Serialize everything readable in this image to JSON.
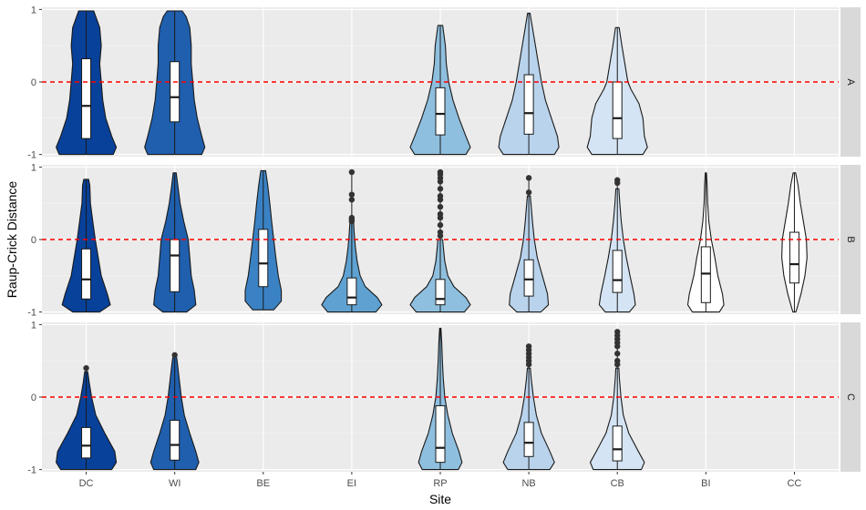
{
  "chart_data": {
    "type": "violin",
    "xlabel": "Site",
    "ylabel": "Raup-Crick Distance",
    "categories": [
      "DC",
      "WI",
      "BE",
      "EI",
      "RP",
      "NB",
      "CB",
      "BI",
      "CC"
    ],
    "y_ticks": [
      -1,
      0,
      1
    ],
    "ylim": [
      -1.03,
      1.03
    ],
    "reference_line": {
      "y": 0,
      "color": "#ff0000",
      "style": "dashed"
    },
    "colors": {
      "DC": "#08419a",
      "WI": "#1f5fae",
      "BE": "#3a82c4",
      "EI": "#5fa2d2",
      "RP": "#8fbfde",
      "NB": "#b9d3ec",
      "CB": "#d4e4f4",
      "BI": "#ffffff",
      "CC": "#ffffff"
    },
    "panels": [
      {
        "facet": "A",
        "violins": [
          {
            "site": "DC",
            "min": -1.0,
            "max": 0.98,
            "q1": -0.78,
            "median": -0.33,
            "q3": 0.32,
            "outliers": [],
            "profile": [
              [
                -1.0,
                0.9
              ],
              [
                -0.9,
                1.0
              ],
              [
                -0.75,
                0.85
              ],
              [
                -0.5,
                0.65
              ],
              [
                -0.25,
                0.55
              ],
              [
                0.0,
                0.5
              ],
              [
                0.25,
                0.45
              ],
              [
                0.5,
                0.5
              ],
              [
                0.75,
                0.45
              ],
              [
                0.9,
                0.32
              ],
              [
                0.98,
                0.25
              ]
            ]
          },
          {
            "site": "WI",
            "min": -1.0,
            "max": 0.98,
            "q1": -0.55,
            "median": -0.21,
            "q3": 0.28,
            "outliers": [],
            "profile": [
              [
                -1.0,
                0.9
              ],
              [
                -0.9,
                1.0
              ],
              [
                -0.75,
                0.9
              ],
              [
                -0.5,
                0.75
              ],
              [
                -0.25,
                0.65
              ],
              [
                0.0,
                0.6
              ],
              [
                0.25,
                0.55
              ],
              [
                0.5,
                0.55
              ],
              [
                0.75,
                0.5
              ],
              [
                0.9,
                0.38
              ],
              [
                0.98,
                0.25
              ]
            ]
          },
          {
            "site": "RP",
            "min": -1.0,
            "max": 0.78,
            "q1": -0.73,
            "median": -0.44,
            "q3": -0.08,
            "outliers": [],
            "profile": [
              [
                -1.0,
                0.85
              ],
              [
                -0.9,
                1.0
              ],
              [
                -0.75,
                0.85
              ],
              [
                -0.5,
                0.62
              ],
              [
                -0.25,
                0.42
              ],
              [
                0.0,
                0.28
              ],
              [
                0.25,
                0.2
              ],
              [
                0.5,
                0.17
              ],
              [
                0.78,
                0.08
              ]
            ]
          },
          {
            "site": "NB",
            "min": -1.0,
            "max": 0.95,
            "q1": -0.72,
            "median": -0.43,
            "q3": 0.1,
            "outliers": [],
            "profile": [
              [
                -1.0,
                0.85
              ],
              [
                -0.9,
                1.0
              ],
              [
                -0.75,
                0.95
              ],
              [
                -0.5,
                0.75
              ],
              [
                -0.25,
                0.55
              ],
              [
                0.0,
                0.42
              ],
              [
                0.25,
                0.32
              ],
              [
                0.5,
                0.22
              ],
              [
                0.75,
                0.12
              ],
              [
                0.95,
                0.04
              ]
            ]
          },
          {
            "site": "CB",
            "min": -1.0,
            "max": 0.75,
            "q1": -0.78,
            "median": -0.5,
            "q3": 0.0,
            "outliers": [],
            "profile": [
              [
                -1.0,
                0.85
              ],
              [
                -0.9,
                1.0
              ],
              [
                -0.75,
                0.9
              ],
              [
                -0.5,
                0.85
              ],
              [
                -0.3,
                0.72
              ],
              [
                -0.1,
                0.45
              ],
              [
                0.0,
                0.35
              ],
              [
                0.25,
                0.25
              ],
              [
                0.5,
                0.15
              ],
              [
                0.75,
                0.06
              ]
            ]
          }
        ]
      },
      {
        "facet": "B",
        "violins": [
          {
            "site": "DC",
            "min": -1.0,
            "max": 0.83,
            "q1": -0.82,
            "median": -0.55,
            "q3": -0.13,
            "outliers": [],
            "profile": [
              [
                -1.0,
                0.45
              ],
              [
                -0.9,
                0.8
              ],
              [
                -0.75,
                0.7
              ],
              [
                -0.5,
                0.5
              ],
              [
                -0.25,
                0.4
              ],
              [
                0.0,
                0.3
              ],
              [
                0.25,
                0.22
              ],
              [
                0.5,
                0.14
              ],
              [
                0.75,
                0.12
              ],
              [
                0.83,
                0.08
              ]
            ]
          },
          {
            "site": "WI",
            "min": -1.0,
            "max": 0.92,
            "q1": -0.72,
            "median": -0.22,
            "q3": 0.0,
            "outliers": [],
            "profile": [
              [
                -1.0,
                0.4
              ],
              [
                -0.9,
                0.7
              ],
              [
                -0.7,
                0.65
              ],
              [
                -0.5,
                0.55
              ],
              [
                -0.25,
                0.5
              ],
              [
                0.0,
                0.45
              ],
              [
                0.25,
                0.3
              ],
              [
                0.5,
                0.18
              ],
              [
                0.75,
                0.1
              ],
              [
                0.92,
                0.05
              ]
            ]
          },
          {
            "site": "BE",
            "min": -0.97,
            "max": 0.95,
            "q1": -0.65,
            "median": -0.33,
            "q3": 0.14,
            "outliers": [],
            "profile": [
              [
                -0.97,
                0.35
              ],
              [
                -0.85,
                0.6
              ],
              [
                -0.7,
                0.6
              ],
              [
                -0.5,
                0.5
              ],
              [
                -0.25,
                0.42
              ],
              [
                0.0,
                0.35
              ],
              [
                0.25,
                0.28
              ],
              [
                0.5,
                0.22
              ],
              [
                0.75,
                0.15
              ],
              [
                0.95,
                0.08
              ]
            ]
          },
          {
            "site": "EI",
            "min": -1.0,
            "max": 0.93,
            "q1": -0.9,
            "median": -0.8,
            "q3": -0.53,
            "outliers": [
              0.93,
              0.62,
              0.55,
              0.3,
              0.27,
              0.25
            ],
            "profile": [
              [
                -1.0,
                0.8
              ],
              [
                -0.9,
                1.0
              ],
              [
                -0.8,
                0.85
              ],
              [
                -0.65,
                0.45
              ],
              [
                -0.5,
                0.28
              ],
              [
                -0.3,
                0.18
              ],
              [
                -0.1,
                0.12
              ],
              [
                0.1,
                0.08
              ],
              [
                0.25,
                0.06
              ]
            ]
          },
          {
            "site": "RP",
            "min": -1.0,
            "max": 0.93,
            "q1": -0.9,
            "median": -0.82,
            "q3": -0.55,
            "outliers": [
              0.93,
              0.9,
              0.85,
              0.8,
              0.7,
              0.6,
              0.55,
              0.45,
              0.35,
              0.3,
              0.2,
              0.1,
              0.05
            ],
            "profile": [
              [
                -1.0,
                0.8
              ],
              [
                -0.9,
                1.0
              ],
              [
                -0.8,
                0.85
              ],
              [
                -0.65,
                0.45
              ],
              [
                -0.5,
                0.25
              ],
              [
                -0.3,
                0.15
              ],
              [
                -0.1,
                0.1
              ],
              [
                0.0,
                0.08
              ]
            ]
          },
          {
            "site": "NB",
            "min": -1.0,
            "max": 0.85,
            "q1": -0.78,
            "median": -0.55,
            "q3": -0.28,
            "outliers": [
              0.85,
              0.65
            ],
            "profile": [
              [
                -1.0,
                0.4
              ],
              [
                -0.9,
                0.65
              ],
              [
                -0.75,
                0.62
              ],
              [
                -0.5,
                0.45
              ],
              [
                -0.25,
                0.28
              ],
              [
                0.0,
                0.18
              ],
              [
                0.25,
                0.12
              ],
              [
                0.45,
                0.08
              ],
              [
                0.6,
                0.05
              ]
            ]
          },
          {
            "site": "CB",
            "min": -1.0,
            "max": 0.82,
            "q1": -0.73,
            "median": -0.56,
            "q3": -0.15,
            "outliers": [
              0.82,
              0.78
            ],
            "profile": [
              [
                -1.0,
                0.4
              ],
              [
                -0.9,
                0.6
              ],
              [
                -0.75,
                0.55
              ],
              [
                -0.5,
                0.42
              ],
              [
                -0.25,
                0.3
              ],
              [
                0.0,
                0.2
              ],
              [
                0.25,
                0.13
              ],
              [
                0.5,
                0.08
              ],
              [
                0.7,
                0.05
              ]
            ]
          },
          {
            "site": "BI",
            "min": -1.0,
            "max": 0.92,
            "q1": -0.87,
            "median": -0.47,
            "q3": -0.1,
            "outliers": [],
            "profile": [
              [
                -1.0,
                0.45
              ],
              [
                -0.9,
                0.6
              ],
              [
                -0.75,
                0.55
              ],
              [
                -0.5,
                0.4
              ],
              [
                -0.25,
                0.3
              ],
              [
                0.0,
                0.18
              ],
              [
                0.25,
                0.1
              ],
              [
                0.5,
                0.06
              ],
              [
                0.75,
                0.04
              ],
              [
                0.92,
                0.02
              ]
            ]
          },
          {
            "site": "CC",
            "min": -1.0,
            "max": 0.92,
            "q1": -0.6,
            "median": -0.34,
            "q3": 0.1,
            "outliers": [],
            "profile": [
              [
                -1.0,
                0.05
              ],
              [
                -0.9,
                0.12
              ],
              [
                -0.75,
                0.22
              ],
              [
                -0.5,
                0.35
              ],
              [
                -0.25,
                0.42
              ],
              [
                0.0,
                0.4
              ],
              [
                0.25,
                0.3
              ],
              [
                0.5,
                0.2
              ],
              [
                0.75,
                0.12
              ],
              [
                0.92,
                0.04
              ]
            ]
          }
        ]
      },
      {
        "facet": "C",
        "violins": [
          {
            "site": "DC",
            "min": -1.0,
            "max": 0.4,
            "q1": -0.84,
            "median": -0.67,
            "q3": -0.42,
            "outliers": [
              0.4
            ],
            "profile": [
              [
                -1.0,
                0.85
              ],
              [
                -0.9,
                1.0
              ],
              [
                -0.75,
                0.95
              ],
              [
                -0.5,
                0.62
              ],
              [
                -0.25,
                0.32
              ],
              [
                0.0,
                0.18
              ],
              [
                0.2,
                0.1
              ],
              [
                0.35,
                0.05
              ]
            ]
          },
          {
            "site": "WI",
            "min": -1.0,
            "max": 0.58,
            "q1": -0.87,
            "median": -0.66,
            "q3": -0.32,
            "outliers": [
              0.58
            ],
            "profile": [
              [
                -1.0,
                0.7
              ],
              [
                -0.9,
                0.8
              ],
              [
                -0.75,
                0.7
              ],
              [
                -0.5,
                0.5
              ],
              [
                -0.25,
                0.32
              ],
              [
                0.0,
                0.22
              ],
              [
                0.25,
                0.15
              ],
              [
                0.5,
                0.08
              ],
              [
                0.58,
                0.05
              ]
            ]
          },
          {
            "site": "RP",
            "min": -1.0,
            "max": 0.95,
            "q1": -0.9,
            "median": -0.7,
            "q3": -0.12,
            "outliers": [],
            "profile": [
              [
                -1.0,
                0.6
              ],
              [
                -0.9,
                0.72
              ],
              [
                -0.75,
                0.62
              ],
              [
                -0.5,
                0.4
              ],
              [
                -0.25,
                0.25
              ],
              [
                0.0,
                0.15
              ],
              [
                0.25,
                0.1
              ],
              [
                0.5,
                0.07
              ],
              [
                0.75,
                0.05
              ],
              [
                0.95,
                0.02
              ]
            ]
          },
          {
            "site": "NB",
            "min": -1.0,
            "max": 0.7,
            "q1": -0.82,
            "median": -0.63,
            "q3": -0.35,
            "outliers": [
              0.7,
              0.65,
              0.6,
              0.55,
              0.5,
              0.45
            ],
            "profile": [
              [
                -1.0,
                0.7
              ],
              [
                -0.9,
                0.85
              ],
              [
                -0.75,
                0.7
              ],
              [
                -0.5,
                0.42
              ],
              [
                -0.25,
                0.25
              ],
              [
                0.0,
                0.15
              ],
              [
                0.25,
                0.08
              ],
              [
                0.4,
                0.05
              ]
            ]
          },
          {
            "site": "CB",
            "min": -1.0,
            "max": 0.9,
            "q1": -0.88,
            "median": -0.72,
            "q3": -0.4,
            "outliers": [
              0.9,
              0.85,
              0.8,
              0.75,
              0.7,
              0.6,
              0.5,
              0.45
            ],
            "profile": [
              [
                -1.0,
                0.8
              ],
              [
                -0.9,
                0.9
              ],
              [
                -0.75,
                0.7
              ],
              [
                -0.5,
                0.38
              ],
              [
                -0.25,
                0.2
              ],
              [
                0.0,
                0.12
              ],
              [
                0.25,
                0.07
              ],
              [
                0.4,
                0.05
              ]
            ]
          }
        ]
      }
    ]
  }
}
